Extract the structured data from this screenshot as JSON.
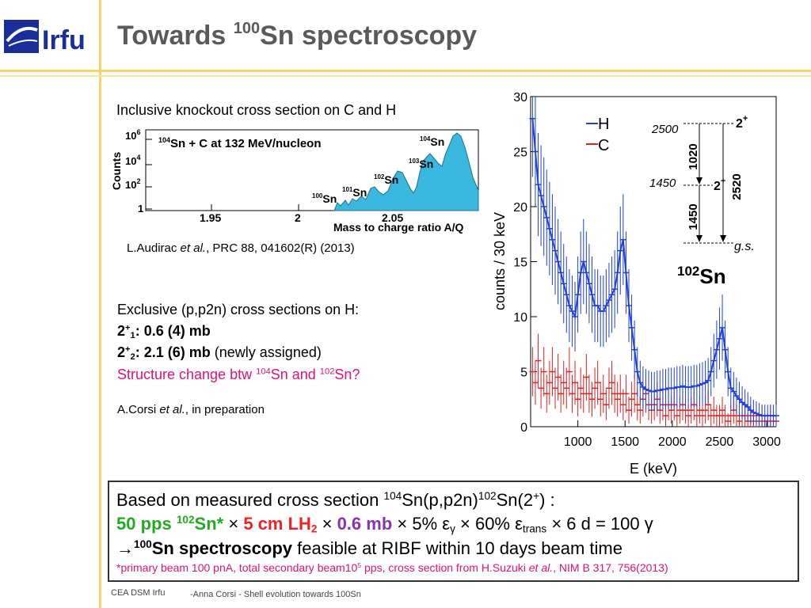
{
  "header": {
    "title_pre": "Towards ",
    "title_sup": "100",
    "title_post": "Sn spectroscopy",
    "logo_text": "Irfu"
  },
  "left": {
    "inclusive_heading": "Inclusive knockout cross section on C and H",
    "ref1_pre": "L.Audirac ",
    "ref1_etal": "et al.",
    "ref1_post": ", PRC 88, 041602(R) (2013)",
    "exclusive_heading": "Exclusive (p,p2n) cross sections on H:",
    "line1_label": "2",
    "line1_sup": "+",
    "line1_sub": "1",
    "line1_value": ": 0.6 (4) mb",
    "line2_label": "2",
    "line2_sup": "+",
    "line2_sub": "2",
    "line2_value": ": 2.1 (6) mb",
    "line2_note": " (newly assigned)",
    "structure_pre": "Structure change btw ",
    "structure_sup1": "104",
    "structure_mid": "Sn and ",
    "structure_sup2": "102",
    "structure_post": "Sn?",
    "ref2_pre": "A.Corsi ",
    "ref2_etal": "et al.",
    "ref2_post": ", in preparation"
  },
  "inset": {
    "ylabel": "Counts",
    "xlabel": "Mass to charge ratio A/Q",
    "annotation": "Sn + C at 132 MeV/nucleon",
    "annotation_sup": "104",
    "y_ticks": [
      "10",
      "10",
      "10",
      "1"
    ],
    "y_tick_sups": [
      "6",
      "4",
      "2",
      ""
    ],
    "x_ticks": [
      "1.95",
      "2",
      "2.05"
    ],
    "peaks": [
      {
        "sup": "104",
        "label": "Sn"
      },
      {
        "sup": "103",
        "label": "Sn"
      },
      {
        "sup": "102",
        "label": "Sn"
      },
      {
        "sup": "101",
        "label": "Sn"
      },
      {
        "sup": "100",
        "label": "Sn"
      }
    ],
    "fill_color": "#3ab8e0"
  },
  "chart_data": {
    "type": "line",
    "title": "",
    "xlabel": "E (keV)",
    "ylabel": "counts / 30 keV",
    "xlim": [
      500,
      3100
    ],
    "ylim": [
      0,
      30
    ],
    "x_ticks": [
      "1000",
      "1500",
      "2000",
      "2500",
      "3000"
    ],
    "y_ticks": [
      "0",
      "5",
      "10",
      "15",
      "20",
      "25",
      "30"
    ],
    "legend": [
      {
        "name": "H",
        "color": "#1f3fe0"
      },
      {
        "name": "C",
        "color": "#e02020"
      }
    ],
    "series": [
      {
        "name": "H",
        "color": "#1f3fe0",
        "x": [
          520,
          550,
          580,
          610,
          640,
          670,
          700,
          730,
          760,
          790,
          820,
          850,
          880,
          910,
          940,
          970,
          1000,
          1030,
          1060,
          1090,
          1120,
          1150,
          1180,
          1210,
          1240,
          1270,
          1300,
          1330,
          1360,
          1390,
          1420,
          1450,
          1480,
          1510,
          1540,
          1570,
          1600,
          1630,
          1660,
          1690,
          1720,
          1750,
          1780,
          1810,
          1840,
          1870,
          1900,
          1930,
          1960,
          1990,
          2020,
          2050,
          2080,
          2110,
          2140,
          2170,
          2200,
          2230,
          2260,
          2290,
          2320,
          2350,
          2380,
          2410,
          2440,
          2470,
          2500,
          2530,
          2560,
          2590,
          2620,
          2650,
          2680,
          2710,
          2740,
          2770,
          2800,
          2830,
          2860,
          2890,
          2920,
          2950,
          2980,
          3010,
          3040,
          3070,
          3100
        ],
        "y": [
          28,
          25,
          22,
          21,
          20,
          19,
          18,
          17,
          16,
          15,
          14,
          13,
          12,
          11,
          10.5,
          10,
          12,
          14,
          15,
          14,
          13,
          12,
          11,
          11,
          10.5,
          10.5,
          11,
          11.5,
          12,
          12.5,
          14,
          16,
          17,
          14,
          11,
          9,
          7,
          5,
          4,
          3.6,
          3.4,
          3.3,
          3.2,
          3.2,
          3.3,
          3.3,
          3.4,
          3.4,
          3.5,
          3.5,
          3.5,
          3.6,
          3.6,
          3.7,
          3.6,
          3.6,
          3.6,
          3.7,
          3.7,
          3.8,
          3.9,
          4,
          4.2,
          5,
          6,
          7,
          8,
          9,
          7,
          5,
          3.5,
          3.2,
          2.8,
          2.5,
          2.2,
          2,
          1.8,
          1.5,
          1.3,
          1.2,
          1.1,
          1,
          1,
          1,
          1,
          1,
          1
        ]
      },
      {
        "name": "C",
        "color": "#e02020",
        "x": [
          520,
          550,
          580,
          610,
          640,
          670,
          700,
          730,
          760,
          790,
          820,
          850,
          880,
          910,
          940,
          970,
          1000,
          1030,
          1060,
          1090,
          1120,
          1150,
          1180,
          1210,
          1240,
          1270,
          1300,
          1330,
          1360,
          1390,
          1420,
          1450,
          1480,
          1510,
          1540,
          1570,
          1600,
          1630,
          1660,
          1690,
          1720,
          1750,
          1780,
          1810,
          1840,
          1870,
          1900,
          1930,
          1960,
          1990,
          2020,
          2050,
          2080,
          2110,
          2140,
          2170,
          2200,
          2230,
          2260,
          2290,
          2320,
          2350,
          2380,
          2410,
          2440,
          2470,
          2500,
          2530,
          2560,
          2590,
          2620,
          2650,
          2680,
          2710,
          2740,
          2770,
          2800,
          2830,
          2860,
          2890,
          2920,
          2950,
          2980,
          3010,
          3040,
          3070,
          3100
        ],
        "y": [
          5,
          4,
          6,
          3.5,
          5,
          3,
          4,
          5,
          3.5,
          4.5,
          3,
          4,
          3.5,
          5,
          3,
          4,
          2.5,
          3.5,
          3,
          4.5,
          3,
          2.5,
          3.5,
          4,
          2.5,
          3,
          2,
          3.5,
          4,
          3,
          2.5,
          3,
          2,
          3,
          1.5,
          2.5,
          3,
          2,
          1.5,
          2.5,
          3,
          2,
          1.5,
          2,
          2.5,
          1.5,
          2,
          1,
          2,
          1.5,
          2,
          1,
          1.5,
          2,
          1.5,
          1,
          1.5,
          2,
          1,
          1.5,
          1,
          1.5,
          2,
          1,
          1.5,
          1,
          1,
          1.5,
          1,
          0.5,
          1,
          1.5,
          1,
          0.5,
          1,
          1,
          0.5,
          1,
          0.5,
          1,
          0.5,
          1,
          0.5,
          0.5,
          1,
          0.5,
          0.5
        ]
      }
    ]
  },
  "level_scheme": {
    "nucleus_sup": "102",
    "nucleus": "Sn",
    "level_2500_energy": "2500",
    "level_2500_spin": "2",
    "level_2500_parity": "+",
    "level_1450_energy": "1450",
    "level_1450_spin": "2",
    "level_1450_parity": "+",
    "ground": "g.s.",
    "transition_1020": "1020",
    "transition_1450": "1450",
    "transition_2520": "2520"
  },
  "summary": {
    "line1_pre": "Based on measured cross section ",
    "line1_sup1": "104",
    "line1_mid": "Sn(p,p2n)",
    "line1_sup2": "102",
    "line1_post": "Sn(2",
    "line1_plus": "+",
    "line1_end": ") :",
    "pps": "50 pps ",
    "pps_sup": "102",
    "pps_post": "Sn*",
    "times": " × ",
    "lh2": "5 cm LH",
    "lh2_sub": "2",
    "mb": "0.6 mb",
    "pct": "5% ε",
    "pct_sub": "γ",
    "trans_pre": "60% ε",
    "trans_sub": "trans",
    "days": "6 d = 100 γ",
    "line3_arrow": "→",
    "line3_sup": "100",
    "line3_bold": "Sn spectroscopy",
    "line3_post": " feasible at RIBF within 10 days beam time",
    "foot_pre": "*primary beam 100 pnA, total  secondary beam10",
    "foot_sup": "5",
    "foot_mid": " pps, cross section from H.Suzuki ",
    "foot_etal": "et al.",
    "foot_post": ", NIM B 317, 756(2013)"
  },
  "footer": {
    "org": "CEA DSM Irfu",
    "talk": "-Anna Corsi -   Shell evolution towards 100Sn"
  }
}
